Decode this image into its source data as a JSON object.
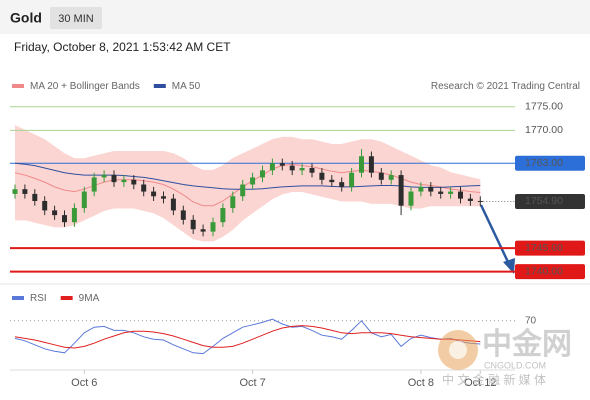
{
  "header": {
    "symbol": "Gold",
    "interval": "30 MIN"
  },
  "timestamp": "Friday, October 8, 2021 1:53:42 AM CET",
  "watermark": {
    "name": "中金网",
    "tagline": "中 文 金 融 新 媒 体",
    "site": "CNGOLD.COM"
  },
  "chart_data": [
    {
      "type": "candlestick",
      "credit": "Research © 2021 Trading Central",
      "categories": [
        null,
        null,
        null,
        null,
        null,
        null,
        null,
        "Oct 6",
        null,
        null,
        null,
        null,
        null,
        null,
        null,
        null,
        null,
        null,
        null,
        null,
        null,
        null,
        null,
        null,
        "Oct 7",
        null,
        null,
        null,
        null,
        null,
        null,
        null,
        null,
        null,
        null,
        null,
        null,
        null,
        null,
        null,
        null,
        "Oct 8",
        null,
        null,
        null,
        null,
        null,
        "Oct 12"
      ],
      "open": [
        1756.5,
        1757.5,
        1756.5,
        1755,
        1753,
        1752,
        1750.5,
        1753.5,
        1757,
        1760,
        1760.5,
        1759,
        1759.5,
        1758.5,
        1757,
        1756,
        1755.5,
        1753,
        1751,
        1749,
        1748.5,
        1750.5,
        1753.5,
        1756,
        1758.5,
        1760,
        1761.5,
        1763,
        1762.5,
        1761.5,
        1762,
        1761,
        1759.5,
        1759,
        1758,
        1761,
        1764.5,
        1761,
        1759.5,
        1760.5,
        1754,
        1757,
        1758,
        1757,
        1756.5,
        1757,
        1755.5,
        1755
      ],
      "high": [
        1758.5,
        1758.5,
        1757.5,
        1756,
        1754,
        1753,
        1754.5,
        1758,
        1761,
        1761.5,
        1761.5,
        1760.5,
        1760.5,
        1759.5,
        1758,
        1757,
        1756.5,
        1754,
        1752,
        1750,
        1751.5,
        1754.5,
        1757,
        1759.5,
        1761,
        1762.5,
        1764,
        1764,
        1763.5,
        1763,
        1763,
        1762,
        1760.5,
        1760,
        1762,
        1766,
        1765.5,
        1762,
        1761.5,
        1761.5,
        1758,
        1759,
        1759,
        1758,
        1758,
        1758,
        1756.5,
        1756
      ],
      "low": [
        1755.5,
        1755.5,
        1754,
        1752,
        1751,
        1749.5,
        1749.5,
        1752.5,
        1756,
        1759,
        1758,
        1758,
        1757.5,
        1756,
        1755,
        1754.5,
        1752,
        1750,
        1748,
        1747.5,
        1747.5,
        1749.5,
        1752.5,
        1755,
        1757.5,
        1759,
        1760.5,
        1761.5,
        1760.5,
        1760.5,
        1760,
        1758.5,
        1758,
        1757,
        1757,
        1760,
        1760,
        1758.5,
        1758.5,
        1752,
        1753,
        1756,
        1756,
        1755.5,
        1755.5,
        1754.5,
        1754,
        1753.9
      ],
      "close": [
        1757.5,
        1756.5,
        1755,
        1753,
        1752,
        1750.5,
        1753.5,
        1757,
        1760,
        1760.5,
        1759,
        1759.5,
        1758.5,
        1757,
        1756,
        1755.5,
        1753,
        1751,
        1749,
        1748.5,
        1750.5,
        1753.5,
        1756,
        1758.5,
        1760,
        1761.5,
        1763,
        1762.5,
        1761.5,
        1762,
        1761,
        1759.5,
        1759,
        1758,
        1761,
        1764.5,
        1761,
        1759.5,
        1760.5,
        1754,
        1757,
        1758,
        1757,
        1756.5,
        1757,
        1755.5,
        1755,
        1754.9
      ],
      "up_color": "#3a9a3a",
      "down_color": "#2d2d2d",
      "series": [
        {
          "name": "MA 20 + Bollinger Bands",
          "color": "#f08a8a",
          "band_color": "#fbd5d2",
          "values": [
            1761,
            1760.5,
            1759.8,
            1759,
            1758,
            1757.3,
            1757,
            1757.5,
            1758.3,
            1759,
            1759.5,
            1759.5,
            1759.5,
            1759.3,
            1759,
            1758.5,
            1757.5,
            1756.3,
            1754.8,
            1754,
            1754,
            1755,
            1756.5,
            1758,
            1759.3,
            1760.5,
            1761.8,
            1762.5,
            1762.8,
            1762.5,
            1762.3,
            1761.8,
            1761.3,
            1761,
            1761.3,
            1761.5,
            1761.3,
            1761,
            1760.5,
            1759.8,
            1759,
            1758.5,
            1758.3,
            1758,
            1757.5,
            1757.3,
            1757,
            1756.8
          ],
          "upper": [
            1771,
            1770,
            1769,
            1768,
            1766.5,
            1765,
            1764,
            1764,
            1764.5,
            1765,
            1765.5,
            1765.5,
            1765.5,
            1765.5,
            1765.5,
            1765.5,
            1765,
            1764,
            1762.5,
            1761.5,
            1761.5,
            1762.5,
            1764,
            1765,
            1766,
            1767,
            1768,
            1768.5,
            1768.5,
            1768,
            1768,
            1767.5,
            1767,
            1767,
            1767.5,
            1768,
            1768,
            1767.5,
            1766.5,
            1765.5,
            1764.5,
            1763.5,
            1762.5,
            1762,
            1761,
            1760.5,
            1760,
            1759.5
          ],
          "lower": [
            1751,
            1751,
            1750.5,
            1750,
            1749.5,
            1749.5,
            1750,
            1751,
            1752,
            1753,
            1753.5,
            1753.5,
            1753.5,
            1753,
            1752.5,
            1751.5,
            1750,
            1748.5,
            1747,
            1746.5,
            1746.5,
            1747.5,
            1749,
            1751,
            1752.5,
            1754,
            1755.5,
            1756.5,
            1757,
            1757,
            1756.5,
            1756,
            1755.5,
            1755,
            1755,
            1755,
            1754.5,
            1754.5,
            1754.5,
            1754,
            1753.5,
            1753.5,
            1754,
            1754,
            1754,
            1754,
            1754,
            1754
          ]
        },
        {
          "name": "MA 50",
          "color": "#2f4f9e",
          "values": [
            1763,
            1762.8,
            1762.5,
            1762,
            1761.5,
            1761,
            1760.7,
            1760.5,
            1760.5,
            1760.5,
            1760.5,
            1760.4,
            1760.2,
            1760,
            1759.7,
            1759.3,
            1758.9,
            1758.5,
            1758.2,
            1758,
            1757.8,
            1757.6,
            1757.5,
            1757.5,
            1757.5,
            1757.6,
            1757.8,
            1758,
            1758.1,
            1758.2,
            1758.2,
            1758.2,
            1758.1,
            1758,
            1758,
            1758.1,
            1758.2,
            1758.3,
            1758.3,
            1758.2,
            1758,
            1757.9,
            1757.9,
            1757.9,
            1758,
            1758.1,
            1758.2,
            1758.3
          ]
        }
      ],
      "levels": [
        {
          "value": 1775,
          "label": "1775.00",
          "color": "#5aa02c",
          "style": "resistance"
        },
        {
          "value": 1770,
          "label": "1770.00",
          "color": "#5aa02c",
          "style": "resistance"
        },
        {
          "value": 1763,
          "label": "1763.00",
          "color": "#2d6fd8",
          "style": "pivot"
        },
        {
          "value": 1754.9,
          "label": "1754.90",
          "color": "#333333",
          "style": "last"
        },
        {
          "value": 1745,
          "label": "1745.00",
          "color": "#e01818",
          "style": "target"
        },
        {
          "value": 1740,
          "label": "1740.00",
          "color": "#e01818",
          "style": "target"
        }
      ],
      "ylim": [
        1737.8,
        1777.5
      ]
    },
    {
      "type": "line",
      "series": [
        {
          "name": "RSI",
          "color": "#5a78d8",
          "values": [
            48,
            45,
            40,
            35,
            32,
            30,
            42,
            55,
            62,
            63,
            58,
            58,
            55,
            50,
            47,
            46,
            40,
            35,
            30,
            29,
            38,
            48,
            55,
            62,
            65,
            68,
            72,
            66,
            62,
            63,
            58,
            52,
            50,
            47,
            58,
            70,
            55,
            50,
            53,
            38,
            48,
            52,
            49,
            47,
            48,
            44,
            42,
            41
          ]
        },
        {
          "name": "9MA",
          "color": "#e02020",
          "values": [
            50,
            48,
            46,
            43,
            40,
            37,
            36,
            38,
            42,
            47,
            51,
            55,
            57,
            57,
            56,
            54,
            51,
            47,
            43,
            39,
            37,
            37,
            38,
            42,
            47,
            52,
            57,
            61,
            63,
            64,
            63,
            61,
            58,
            55,
            54,
            55,
            55,
            55,
            54,
            52,
            50,
            49,
            48,
            47,
            47,
            46,
            45,
            44
          ]
        }
      ],
      "ylim": [
        6,
        86
      ],
      "yticks": [
        70
      ]
    }
  ]
}
